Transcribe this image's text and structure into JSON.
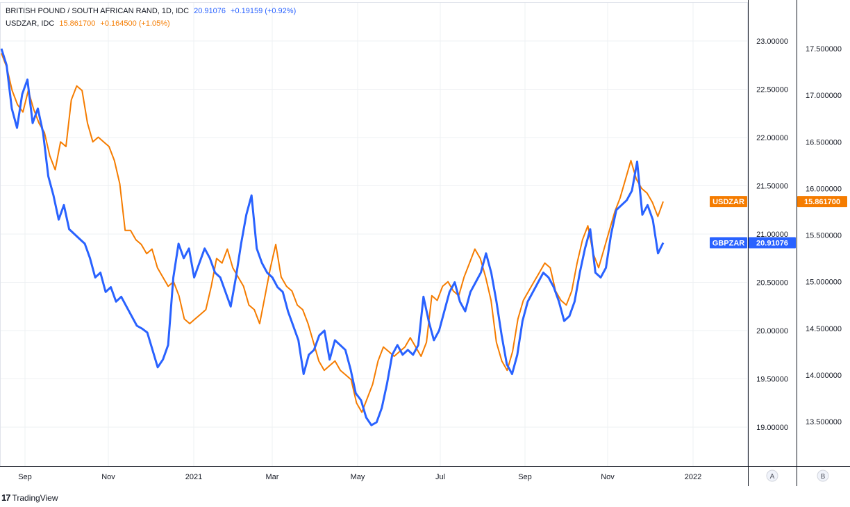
{
  "legend": {
    "series1": {
      "name": "BRITISH POUND / SOUTH AFRICAN RAND, 1D, IDC",
      "value": "20.91076",
      "change": "+0.19159 (+0.92%)"
    },
    "series2": {
      "name": "USDZAR, IDC",
      "value": "15.861700",
      "change": "+0.164500 (+1.05%)"
    }
  },
  "colors": {
    "gbpzar": "#2962ff",
    "usdzar": "#f57c00",
    "grid": "#eef0f3",
    "axis": "#131722"
  },
  "footer": {
    "brand_icon": "tradingview-logo-icon",
    "brand": "TradingView"
  },
  "chart_data": {
    "type": "line",
    "x_ticks": [
      "Sep",
      "Nov",
      "2021",
      "Mar",
      "May",
      "Jul",
      "Sep",
      "Nov",
      "2022"
    ],
    "axes": {
      "A": {
        "ticks": [
          "23.00000",
          "22.50000",
          "22.00000",
          "21.50000",
          "21.00000",
          "20.50000",
          "20.00000",
          "19.50000",
          "19.00000"
        ],
        "ylim": [
          18.6,
          23.4
        ],
        "scale_button": "A"
      },
      "B": {
        "ticks": [
          "17.500000",
          "17.000000",
          "16.500000",
          "16.000000",
          "15.500000",
          "15.000000",
          "14.500000",
          "14.000000",
          "13.500000"
        ],
        "ylim": [
          13.2,
          17.9
        ],
        "scale_button": "B"
      }
    },
    "series": [
      {
        "name": "GBPZAR",
        "axis": "A",
        "last_label": "20.91076",
        "values": [
          22.92,
          22.75,
          22.3,
          22.1,
          22.45,
          22.6,
          22.15,
          22.3,
          22.05,
          21.6,
          21.4,
          21.15,
          21.3,
          21.05,
          21.0,
          20.95,
          20.9,
          20.75,
          20.55,
          20.6,
          20.4,
          20.45,
          20.3,
          20.35,
          20.25,
          20.15,
          20.05,
          20.02,
          19.98,
          19.8,
          19.62,
          19.7,
          19.85,
          20.55,
          20.9,
          20.75,
          20.85,
          20.55,
          20.7,
          20.85,
          20.75,
          20.6,
          20.55,
          20.4,
          20.25,
          20.55,
          20.9,
          21.2,
          21.4,
          20.85,
          20.7,
          20.6,
          20.55,
          20.45,
          20.4,
          20.2,
          20.05,
          19.9,
          19.55,
          19.75,
          19.8,
          19.95,
          20.0,
          19.7,
          19.9,
          19.85,
          19.8,
          19.6,
          19.35,
          19.28,
          19.1,
          19.02,
          19.05,
          19.2,
          19.45,
          19.75,
          19.85,
          19.75,
          19.8,
          19.75,
          19.85,
          20.35,
          20.1,
          19.9,
          20.0,
          20.2,
          20.4,
          20.5,
          20.3,
          20.2,
          20.4,
          20.5,
          20.6,
          20.8,
          20.6,
          20.3,
          19.95,
          19.65,
          19.55,
          19.75,
          20.1,
          20.3,
          20.4,
          20.5,
          20.6,
          20.55,
          20.45,
          20.3,
          20.1,
          20.15,
          20.3,
          20.6,
          20.85,
          21.05,
          20.6,
          20.55,
          20.65,
          21.0,
          21.25,
          21.3,
          21.35,
          21.45,
          21.75,
          21.2,
          21.3,
          21.15,
          20.8,
          20.91
        ]
      },
      {
        "name": "USDZAR",
        "axis": "B",
        "last_label": "15.861700",
        "values": [
          17.45,
          17.3,
          17.05,
          16.9,
          16.82,
          17.05,
          16.85,
          16.7,
          16.6,
          16.35,
          16.2,
          16.5,
          16.45,
          16.95,
          17.1,
          17.05,
          16.7,
          16.5,
          16.55,
          16.5,
          16.45,
          16.3,
          16.05,
          15.55,
          15.55,
          15.45,
          15.4,
          15.3,
          15.35,
          15.15,
          15.05,
          14.95,
          15.0,
          14.85,
          14.6,
          14.55,
          14.6,
          14.65,
          14.7,
          14.95,
          15.25,
          15.2,
          15.35,
          15.15,
          15.05,
          14.95,
          14.75,
          14.7,
          14.55,
          14.85,
          15.15,
          15.4,
          15.05,
          14.95,
          14.9,
          14.75,
          14.7,
          14.55,
          14.35,
          14.15,
          14.05,
          14.1,
          14.15,
          14.05,
          14.0,
          13.95,
          13.7,
          13.6,
          13.75,
          13.9,
          14.15,
          14.3,
          14.25,
          14.2,
          14.25,
          14.3,
          14.4,
          14.3,
          14.2,
          14.35,
          14.85,
          14.8,
          14.95,
          15.0,
          14.9,
          14.85,
          15.05,
          15.2,
          15.35,
          15.25,
          15.05,
          14.8,
          14.35,
          14.15,
          14.05,
          14.25,
          14.6,
          14.8,
          14.9,
          15.0,
          15.1,
          15.2,
          15.15,
          14.9,
          14.8,
          14.75,
          14.9,
          15.2,
          15.45,
          15.6,
          15.3,
          15.15,
          15.35,
          15.55,
          15.75,
          15.9,
          16.1,
          16.3,
          16.1,
          16.0,
          15.95,
          15.85,
          15.7,
          15.86
        ]
      }
    ]
  }
}
